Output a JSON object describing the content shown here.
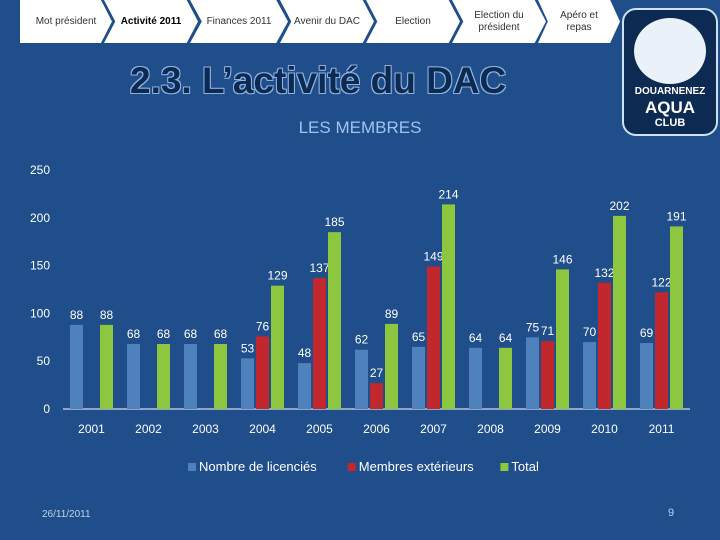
{
  "nav": {
    "items": [
      {
        "label": "Mot président"
      },
      {
        "label": "Activité 2011",
        "active": true
      },
      {
        "label": "Finances 2011"
      },
      {
        "label": "Avenir du DAC"
      },
      {
        "label": "Election"
      },
      {
        "label": "Election du président"
      },
      {
        "label": "Apéro et repas"
      }
    ]
  },
  "slide": {
    "title": "2.3. L’activité du DAC",
    "date": "26/11/2011",
    "page_number": "9"
  },
  "logo": {
    "line1": "DOUARNENEZ",
    "line2": "AQUA",
    "line3": "CLUB"
  },
  "colors": {
    "background": "#1f4e8a",
    "licencies": "#4f81bd",
    "exterieurs": "#c0282d",
    "total": "#8dc63f"
  },
  "chart_data": {
    "type": "bar",
    "title": "LES MEMBRES",
    "categories": [
      "2001",
      "2002",
      "2003",
      "2004",
      "2005",
      "2006",
      "2007",
      "2008",
      "2009",
      "2010",
      "2011"
    ],
    "series": [
      {
        "name": "Nombre de licenciés",
        "values": [
          88,
          68,
          68,
          53,
          48,
          62,
          65,
          64,
          75,
          70,
          69
        ]
      },
      {
        "name": "Membres extérieurs",
        "values": [
          null,
          null,
          null,
          76,
          137,
          27,
          149,
          null,
          71,
          132,
          122
        ]
      },
      {
        "name": "Total",
        "values": [
          88,
          68,
          68,
          129,
          185,
          89,
          214,
          64,
          146,
          202,
          191
        ]
      }
    ],
    "yticks": [
      "0",
      "50",
      "100",
      "150",
      "200",
      "250"
    ],
    "ylim": [
      0,
      250
    ],
    "legend_position": "bottom"
  }
}
